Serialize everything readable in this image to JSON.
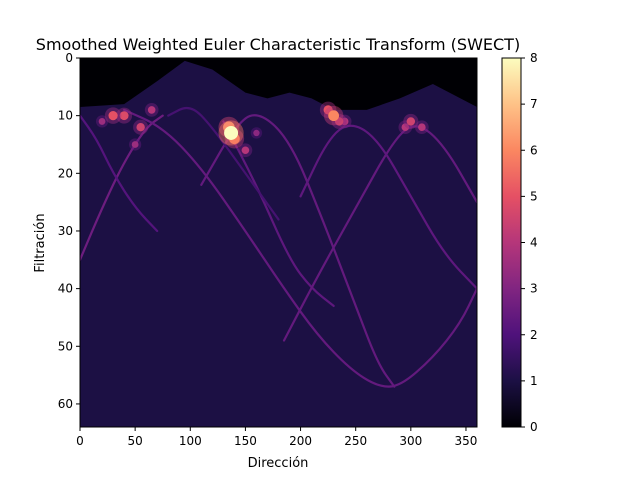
{
  "chart_data": {
    "type": "heatmap",
    "title": "Smoothed Weighted Euler Characteristic Transform (SWECT)",
    "xlabel": "Dirección",
    "ylabel": "Filtración",
    "xlim": [
      0,
      360
    ],
    "ylim": [
      0,
      64
    ],
    "y_axis_inverted": true,
    "x_ticks": [
      0,
      50,
      100,
      150,
      200,
      250,
      300,
      350
    ],
    "y_ticks": [
      0,
      10,
      20,
      30,
      40,
      50,
      60
    ],
    "colormap": "magma",
    "colorbar": {
      "range": [
        0,
        8
      ],
      "ticks": [
        0,
        1,
        2,
        3,
        4,
        5,
        6,
        7,
        8
      ],
      "placement": "right"
    },
    "background_value": 1,
    "top_region": {
      "description_value": 0,
      "boundary_filtration_by_direction": [
        {
          "x": 0,
          "y": 8.5
        },
        {
          "x": 40,
          "y": 8
        },
        {
          "x": 70,
          "y": 4
        },
        {
          "x": 95,
          "y": 0.5
        },
        {
          "x": 120,
          "y": 2
        },
        {
          "x": 150,
          "y": 6
        },
        {
          "x": 170,
          "y": 7
        },
        {
          "x": 190,
          "y": 6
        },
        {
          "x": 210,
          "y": 7
        },
        {
          "x": 230,
          "y": 9
        },
        {
          "x": 260,
          "y": 9
        },
        {
          "x": 290,
          "y": 7
        },
        {
          "x": 320,
          "y": 4.5
        },
        {
          "x": 345,
          "y": 7
        },
        {
          "x": 360,
          "y": 8.5
        }
      ]
    },
    "curves": [
      {
        "family": "sinusoid",
        "value": 2.6,
        "points": [
          [
            0,
            35
          ],
          [
            20,
            26
          ],
          [
            40,
            18
          ],
          [
            60,
            12
          ],
          [
            75,
            10
          ]
        ]
      },
      {
        "family": "sinusoid",
        "value": 2.4,
        "points": [
          [
            40,
            9
          ],
          [
            75,
            12
          ],
          [
            110,
            19
          ],
          [
            150,
            30
          ],
          [
            185,
            40
          ],
          [
            215,
            48
          ],
          [
            245,
            54
          ],
          [
            270,
            57
          ],
          [
            290,
            57
          ],
          [
            320,
            52
          ],
          [
            345,
            46
          ],
          [
            360,
            40
          ]
        ]
      },
      {
        "family": "sinusoid",
        "value": 2.4,
        "points": [
          [
            110,
            22
          ],
          [
            140,
            12
          ],
          [
            160,
            9
          ],
          [
            190,
            14
          ],
          [
            220,
            28
          ],
          [
            250,
            43
          ],
          [
            270,
            53
          ],
          [
            285,
            57
          ]
        ]
      },
      {
        "family": "sinusoid",
        "value": 2.3,
        "points": [
          [
            130,
            11
          ],
          [
            160,
            22
          ],
          [
            190,
            35
          ],
          [
            210,
            40
          ],
          [
            230,
            43
          ]
        ]
      },
      {
        "family": "sinusoid",
        "value": 2.4,
        "points": [
          [
            185,
            49
          ],
          [
            215,
            38
          ],
          [
            250,
            26
          ],
          [
            285,
            14
          ],
          [
            305,
            11
          ],
          [
            330,
            15
          ],
          [
            360,
            25
          ]
        ]
      },
      {
        "family": "sinusoid",
        "value": 2.3,
        "points": [
          [
            200,
            24
          ],
          [
            225,
            14
          ],
          [
            245,
            11
          ],
          [
            270,
            14
          ],
          [
            300,
            24
          ],
          [
            330,
            34
          ],
          [
            360,
            40
          ]
        ]
      },
      {
        "family": "sinusoid",
        "value": 2.1,
        "points": [
          [
            0,
            10
          ],
          [
            15,
            14
          ],
          [
            30,
            20
          ],
          [
            50,
            26
          ],
          [
            70,
            30
          ]
        ]
      },
      {
        "family": "arc",
        "value": 1.8,
        "points": [
          [
            80,
            10
          ],
          [
            100,
            8
          ],
          [
            120,
            12
          ],
          [
            150,
            20
          ],
          [
            180,
            28
          ]
        ]
      }
    ],
    "hotspots": [
      {
        "x": 137,
        "y": 13,
        "value": 8.0
      },
      {
        "x": 135,
        "y": 12,
        "value": 6.5
      },
      {
        "x": 140,
        "y": 14,
        "value": 6.0
      },
      {
        "x": 230,
        "y": 10,
        "value": 6.0
      },
      {
        "x": 225,
        "y": 9,
        "value": 5.0
      },
      {
        "x": 235,
        "y": 11,
        "value": 4.5
      },
      {
        "x": 30,
        "y": 10,
        "value": 5.0
      },
      {
        "x": 40,
        "y": 10,
        "value": 4.8
      },
      {
        "x": 55,
        "y": 12,
        "value": 4.5
      },
      {
        "x": 65,
        "y": 9,
        "value": 4.0
      },
      {
        "x": 300,
        "y": 11,
        "value": 4.5
      },
      {
        "x": 295,
        "y": 12,
        "value": 4.0
      },
      {
        "x": 310,
        "y": 12,
        "value": 4.0
      },
      {
        "x": 150,
        "y": 16,
        "value": 4.0
      },
      {
        "x": 20,
        "y": 11,
        "value": 3.5
      },
      {
        "x": 240,
        "y": 11,
        "value": 4.0
      },
      {
        "x": 160,
        "y": 13,
        "value": 3.2
      },
      {
        "x": 50,
        "y": 15,
        "value": 3.5
      }
    ]
  }
}
